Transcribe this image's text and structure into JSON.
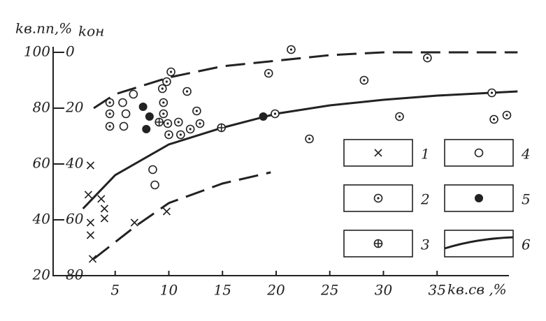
{
  "chart_data": {
    "type": "scatter",
    "y_label": "kв.пп,%",
    "y2_label": "kон",
    "x_label": "kв.св ,%",
    "xlim": [
      0,
      43
    ],
    "ylim": [
      20,
      100
    ],
    "y2lim": [
      80,
      0
    ],
    "xticks": [
      5,
      10,
      15,
      20,
      25,
      30,
      35
    ],
    "yticks": [
      20,
      40,
      60,
      80,
      100
    ],
    "y2ticks": [
      0,
      20,
      40,
      60,
      80
    ],
    "series": [
      {
        "name": "1",
        "marker": "x",
        "color": "#222",
        "x": [
          2.7,
          2.5,
          3.7,
          4.0,
          2.7,
          4.0,
          2.7,
          6.8,
          9.8,
          2.9
        ],
        "values": [
          59.5,
          49,
          47.5,
          44,
          39,
          40.5,
          34.5,
          39,
          43,
          26
        ]
      },
      {
        "name": "2",
        "marker": "dot-circle",
        "color": "#222",
        "x": [
          4.5,
          4.5,
          4.5,
          10.2,
          9.8,
          9.4,
          9.5,
          9.5,
          9.9,
          10.9,
          11.1,
          10.0,
          12.0,
          11.7,
          12.6,
          12.9,
          19.3,
          19.9,
          21.4,
          23.1,
          28.2,
          31.5,
          34.1,
          40.1,
          40.3,
          41.5
        ],
        "values": [
          82,
          78,
          73.5,
          93,
          89.5,
          87,
          82,
          78,
          74.5,
          75,
          70.5,
          70.5,
          72.5,
          86,
          79,
          74.5,
          92.5,
          78,
          101,
          69,
          90,
          77,
          98,
          85.5,
          76,
          77.5
        ]
      },
      {
        "name": "3",
        "marker": "crossed-circle",
        "color": "#222",
        "x": [
          9.1,
          14.9
        ],
        "values": [
          75,
          73
        ]
      },
      {
        "name": "4",
        "marker": "circle",
        "color": "#222",
        "x": [
          5.7,
          6.0,
          5.8,
          6.7,
          8.5,
          8.7
        ],
        "values": [
          82,
          78,
          73.5,
          85,
          58,
          52.5
        ]
      },
      {
        "name": "5",
        "marker": "filled",
        "color": "#222",
        "x": [
          7.6,
          8.2,
          7.9,
          18.8
        ],
        "values": [
          80.5,
          77,
          72.5,
          77
        ]
      }
    ],
    "lines": [
      {
        "name": "6",
        "style": "solid",
        "color": "#222",
        "x": [
          2,
          5,
          10,
          15,
          20,
          25,
          30,
          35,
          42.5
        ],
        "values": [
          44,
          56,
          67,
          73,
          78,
          81,
          83,
          84.5,
          86
        ]
      },
      {
        "style": "dashed",
        "color": "#222",
        "x": [
          3,
          5,
          10,
          15,
          20,
          25,
          30,
          42.5
        ],
        "values": [
          80,
          85,
          91,
          95,
          97,
          99,
          100,
          100
        ]
      },
      {
        "style": "dashed",
        "color": "#222",
        "x": [
          3,
          5,
          7,
          10,
          15,
          19.5
        ],
        "values": [
          26,
          32,
          38,
          46,
          53,
          57
        ]
      }
    ]
  }
}
